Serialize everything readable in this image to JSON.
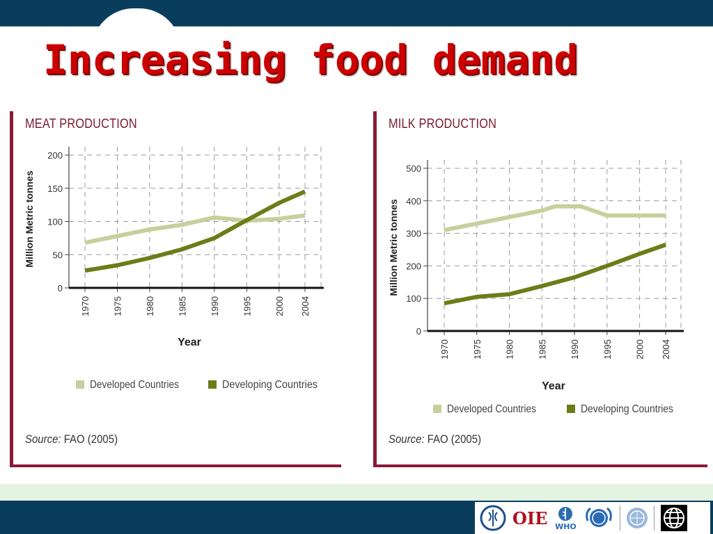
{
  "slide": {
    "title": "Increasing food demand"
  },
  "chart_data": [
    {
      "id": "meat",
      "type": "line",
      "title": "MEAT PRODUCTION",
      "ylabel": "Million Metric tonnes",
      "xlabel": "Year",
      "categories": [
        "1970",
        "1975",
        "1980",
        "1985",
        "1990",
        "1995",
        "2000",
        "2004"
      ],
      "x": [
        1970,
        1975,
        1980,
        1985,
        1990,
        1995,
        2000,
        2004
      ],
      "ylim": [
        0,
        200
      ],
      "yticks": [
        0,
        50,
        100,
        150,
        200
      ],
      "series": [
        {
          "name": "Developed Countries",
          "color": "#c6d09c",
          "x": [
            1970,
            1975,
            1980,
            1985,
            1990,
            1995,
            2000,
            2004
          ],
          "values": [
            68,
            78,
            88,
            95,
            106,
            101,
            104,
            109
          ]
        },
        {
          "name": "Developing Countries",
          "color": "#6b7d18",
          "x": [
            1970,
            1975,
            1980,
            1985,
            1990,
            1995,
            2000,
            2004
          ],
          "values": [
            26,
            34,
            45,
            58,
            75,
            102,
            128,
            145
          ]
        }
      ],
      "grid": true,
      "legend_position": "bottom",
      "source_label": "Source:",
      "source_value": "FAO (2005)"
    },
    {
      "id": "milk",
      "type": "line",
      "title": "MILK PRODUCTION",
      "ylabel": "Million Metric tonnes",
      "xlabel": "Year",
      "categories": [
        "1970",
        "1975",
        "1980",
        "1985",
        "1990",
        "1995",
        "2000",
        "2004"
      ],
      "x": [
        1970,
        1975,
        1980,
        1985,
        1990,
        1995,
        2000,
        2004
      ],
      "ylim": [
        0,
        500
      ],
      "yticks": [
        0,
        100,
        200,
        300,
        400,
        500
      ],
      "series": [
        {
          "name": "Developed Countries",
          "color": "#c6d09c",
          "x": [
            1970,
            1975,
            1980,
            1985,
            1987,
            1991,
            1995,
            2000,
            2004
          ],
          "values": [
            310,
            330,
            350,
            370,
            383,
            383,
            355,
            355,
            355
          ]
        },
        {
          "name": "Developing Countries",
          "color": "#6b7d18",
          "x": [
            1970,
            1975,
            1980,
            1985,
            1990,
            1995,
            2000,
            2004
          ],
          "values": [
            85,
            105,
            113,
            138,
            165,
            200,
            237,
            265
          ]
        }
      ],
      "grid": true,
      "legend_position": "bottom",
      "source_label": "Source:",
      "source_value": "FAO (2005)"
    }
  ],
  "footer": {
    "logos": [
      "fao-logo",
      "oie-logo",
      "who-logo",
      "unicef-logo",
      "un-logo",
      "world-bank-logo"
    ],
    "oie_text": "OIE",
    "who_text": "WHO"
  }
}
